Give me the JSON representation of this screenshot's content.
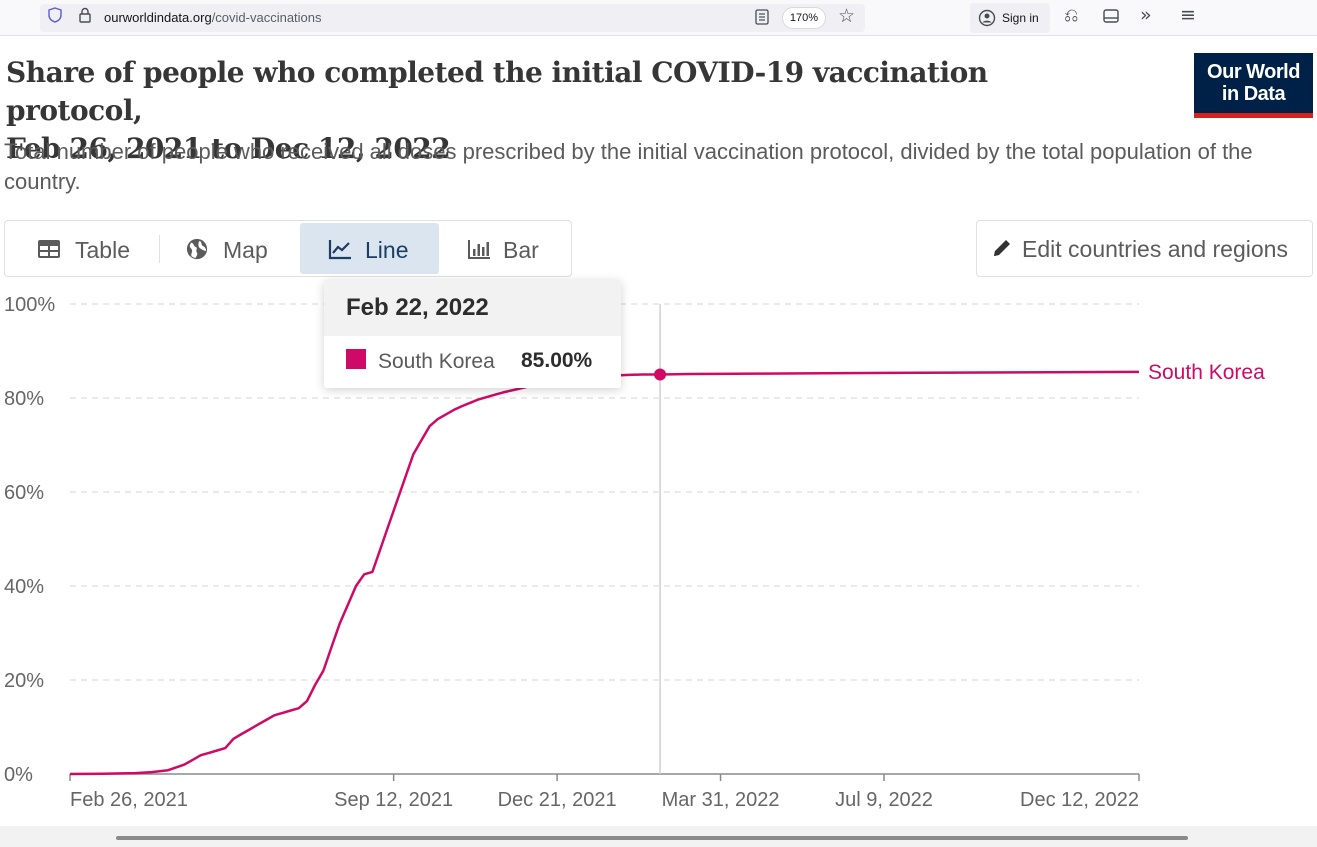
{
  "browser": {
    "url_host": "ourworldindata.org",
    "url_path": "/covid-vaccinations",
    "zoom": "170%",
    "signin_label": "Sign in",
    "icons": [
      "shield-icon",
      "lock-icon",
      "reader-mode-icon",
      "star-icon",
      "account-icon",
      "extensions-icon",
      "sidebar-icon",
      "overflow-icon",
      "menu-icon"
    ]
  },
  "header": {
    "title_line1": "Share of people who completed the initial COVID-19 vaccination protocol,",
    "title_line2": "Feb 26, 2021 to Dec 12, 2022",
    "subtitle": "Total number of people who received all doses prescribed by the initial vaccination protocol, divided by the total population of the country.",
    "logo_line1": "Our World",
    "logo_line2": "in Data"
  },
  "tabs": [
    {
      "label": "Table",
      "icon": "table-icon",
      "active": false
    },
    {
      "label": "Map",
      "icon": "globe-icon",
      "active": false
    },
    {
      "label": "Line",
      "icon": "line-chart-icon",
      "active": true
    },
    {
      "label": "Bar",
      "icon": "bar-chart-icon",
      "active": false
    }
  ],
  "edit_button": {
    "label": "Edit countries and regions",
    "icon": "pencil-icon"
  },
  "tooltip": {
    "date": "Feb 22, 2022",
    "entity": "South Korea",
    "value": "85.00%"
  },
  "colors": {
    "series": "#cf0a66",
    "logo_bg": "#002147",
    "logo_bar": "#ce261e",
    "active_tab": "#dbe5f0"
  },
  "chart_data": {
    "type": "line",
    "title": "Share of people who completed the initial COVID-19 vaccination protocol, Feb 26, 2021 to Dec 12, 2022",
    "xlabel": "",
    "ylabel": "",
    "ylim": [
      0,
      100
    ],
    "yticks": [
      0,
      20,
      40,
      60,
      80,
      100
    ],
    "ytick_labels": [
      "0%",
      "20%",
      "40%",
      "60%",
      "80%",
      "100%"
    ],
    "xlim_days": [
      0,
      654
    ],
    "xticks": [
      {
        "label": "Feb 26, 2021",
        "day": 0
      },
      {
        "label": "Sep 12, 2021",
        "day": 198
      },
      {
        "label": "Dec 21, 2021",
        "day": 298
      },
      {
        "label": "Mar 31, 2022",
        "day": 398
      },
      {
        "label": "Jul 9, 2022",
        "day": 498
      },
      {
        "label": "Dec 12, 2022",
        "day": 654
      }
    ],
    "grid": true,
    "hover": {
      "day": 361,
      "value": 85.0
    },
    "series": [
      {
        "name": "South Korea",
        "x_days": [
          0,
          20,
          40,
          50,
          60,
          70,
          75,
          80,
          85,
          90,
          95,
          100,
          105,
          110,
          115,
          120,
          125,
          130,
          135,
          140,
          145,
          150,
          155,
          160,
          165,
          170,
          175,
          180,
          185,
          190,
          195,
          200,
          205,
          210,
          215,
          220,
          225,
          230,
          235,
          240,
          245,
          250,
          255,
          260,
          265,
          270,
          275,
          280,
          285,
          290,
          295,
          300,
          310,
          320,
          330,
          340,
          350,
          361,
          380,
          420,
          500,
          600,
          654
        ],
        "values": [
          0,
          0.05,
          0.2,
          0.4,
          0.8,
          2,
          3,
          4,
          4.5,
          5,
          5.5,
          7.5,
          8.5,
          9.5,
          10.5,
          11.5,
          12.5,
          13,
          13.5,
          14,
          15.5,
          19,
          22,
          27,
          32,
          36,
          40,
          42.5,
          43,
          48,
          53,
          58,
          63,
          68,
          71,
          74,
          75.5,
          76.5,
          77.5,
          78.3,
          79,
          79.7,
          80.2,
          80.7,
          81.2,
          81.6,
          82,
          82.4,
          82.8,
          83.1,
          83.4,
          83.7,
          84.1,
          84.5,
          84.7,
          84.9,
          85.0,
          85.0,
          85.1,
          85.2,
          85.35,
          85.5,
          85.55
        ]
      }
    ]
  }
}
